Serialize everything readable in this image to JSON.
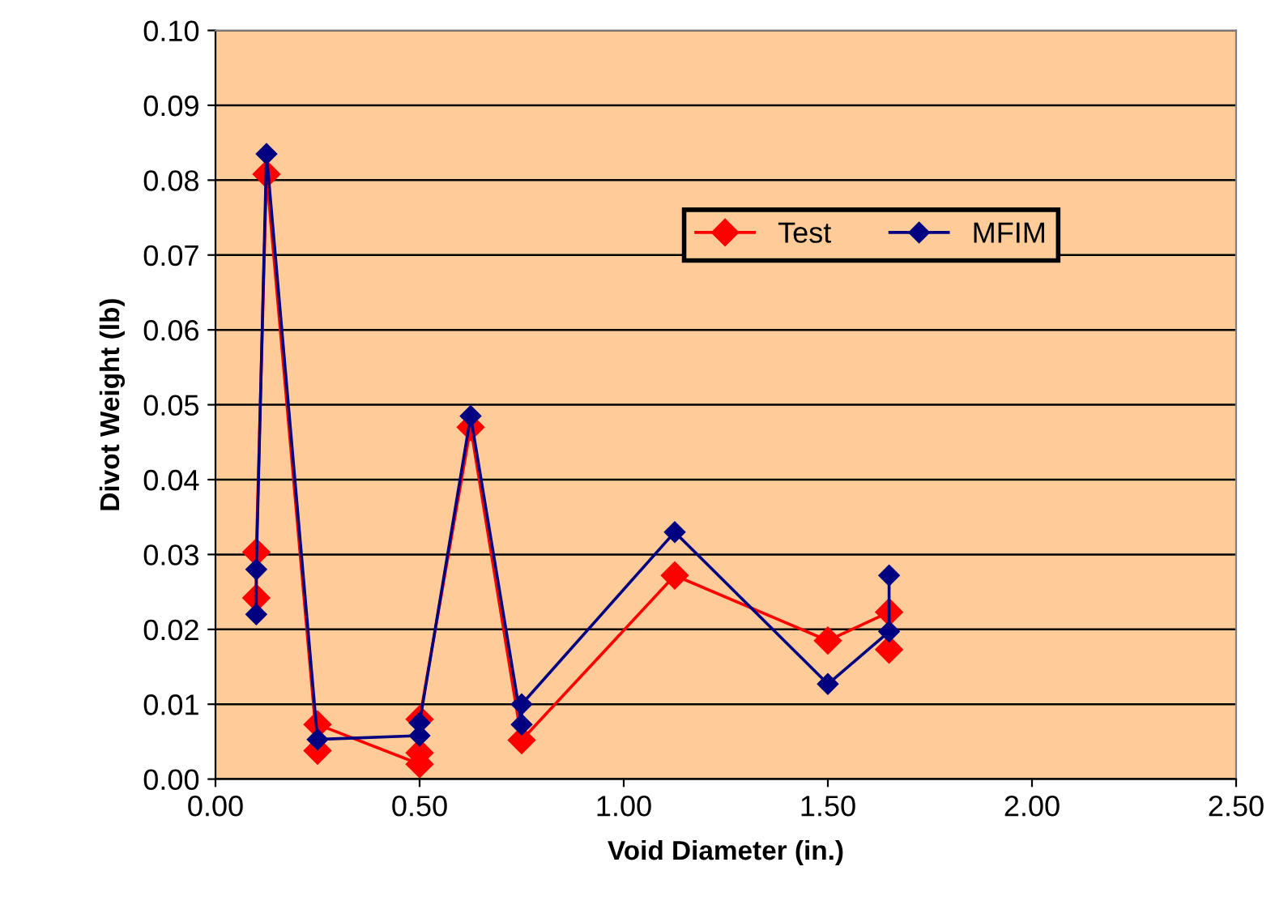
{
  "chart_data": {
    "type": "line",
    "xlabel": "Void Diameter (in.)",
    "ylabel": "Divot Weight (lb)",
    "xlim": [
      0,
      2.5
    ],
    "xticks": [
      {
        "value": 0,
        "label": "0.00"
      },
      {
        "value": 0.5,
        "label": "0.50"
      },
      {
        "value": 1,
        "label": "1.00"
      },
      {
        "value": 1.5,
        "label": "1.50"
      },
      {
        "value": 2,
        "label": "2.00"
      },
      {
        "value": 2.5,
        "label": "2.50"
      }
    ],
    "ylim": [
      0,
      0.1
    ],
    "yticks": [
      {
        "value": 0,
        "label": "0.00"
      },
      {
        "value": 0.01,
        "label": "0.01"
      },
      {
        "value": 0.02,
        "label": "0.02"
      },
      {
        "value": 0.03,
        "label": "0.03"
      },
      {
        "value": 0.04,
        "label": "0.04"
      },
      {
        "value": 0.05,
        "label": "0.05"
      },
      {
        "value": 0.06,
        "label": "0.06"
      },
      {
        "value": 0.07,
        "label": "0.07"
      },
      {
        "value": 0.08,
        "label": "0.08"
      },
      {
        "value": 0.09,
        "label": "0.09"
      },
      {
        "value": 0.1,
        "label": "0.10"
      }
    ],
    "grid": "y",
    "legend": "top right",
    "marker": "diamond",
    "line_style": "solid",
    "series": [
      {
        "name": "Test",
        "color": "#ff0000",
        "x": [
          0.1,
          0.1,
          0.125,
          0.25,
          0.25,
          0.5,
          0.5,
          0.5,
          0.625,
          0.75,
          1.125,
          1.5,
          1.65,
          1.65
        ],
        "values": [
          0.0242,
          0.0303,
          0.0808,
          0.0038,
          0.0073,
          0.002,
          0.0035,
          0.008,
          0.047,
          0.0052,
          0.0272,
          0.0185,
          0.0223,
          0.0173
        ]
      },
      {
        "name": "MFIM",
        "color": "#000080",
        "x": [
          0.1,
          0.1,
          0.125,
          0.25,
          0.5,
          0.5,
          0.625,
          0.75,
          0.75,
          1.125,
          1.5,
          1.65,
          1.65
        ],
        "values": [
          0.022,
          0.028,
          0.0835,
          0.0053,
          0.0058,
          0.0075,
          0.0485,
          0.0073,
          0.01,
          0.033,
          0.0127,
          0.0197,
          0.0272
        ]
      }
    ]
  }
}
